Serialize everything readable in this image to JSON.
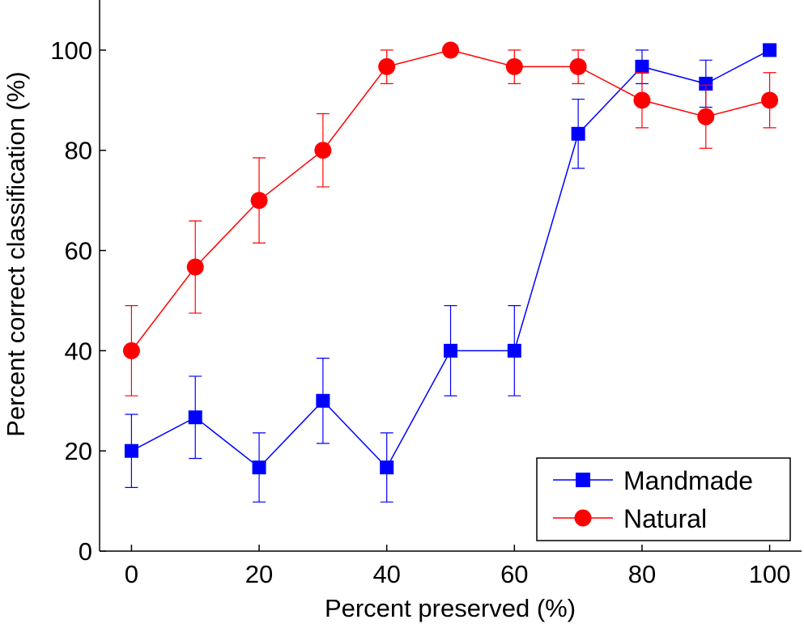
{
  "chart_data": {
    "type": "line",
    "xlabel": "Percent preserved (%)",
    "ylabel": "Percent correct classification (%)",
    "xlim": [
      -5,
      105
    ],
    "ylim": [
      0,
      110
    ],
    "xticks": [
      0,
      20,
      40,
      60,
      80,
      100
    ],
    "yticks": [
      0,
      20,
      40,
      60,
      80,
      100
    ],
    "grid": false,
    "legend_position": "bottom-right",
    "x": [
      0,
      10,
      20,
      30,
      40,
      50,
      60,
      70,
      80,
      90,
      100
    ],
    "series": [
      {
        "name": "Mandmade",
        "color": "#0000ff",
        "marker": "square",
        "values": [
          20,
          26.7,
          16.7,
          30,
          16.7,
          40,
          40,
          83.3,
          96.7,
          93.3,
          100
        ],
        "error_lower": [
          12.7,
          18.5,
          9.8,
          21.5,
          9.8,
          31,
          31,
          76.4,
          93.3,
          88.6,
          100
        ],
        "error_upper": [
          27.3,
          34.9,
          23.6,
          38.5,
          23.6,
          49,
          49,
          90.2,
          100,
          98,
          100
        ]
      },
      {
        "name": "Natural",
        "color": "#ff0000",
        "marker": "circle",
        "values": [
          40,
          56.7,
          70,
          80,
          96.7,
          100,
          96.7,
          96.7,
          90,
          86.7,
          90
        ],
        "error_lower": [
          31,
          47.5,
          61.5,
          72.7,
          93.3,
          100,
          93.3,
          93.3,
          84.5,
          80.4,
          84.5
        ],
        "error_upper": [
          49,
          65.9,
          78.5,
          87.3,
          100,
          100,
          100,
          100,
          95.5,
          93,
          95.5
        ]
      }
    ]
  }
}
